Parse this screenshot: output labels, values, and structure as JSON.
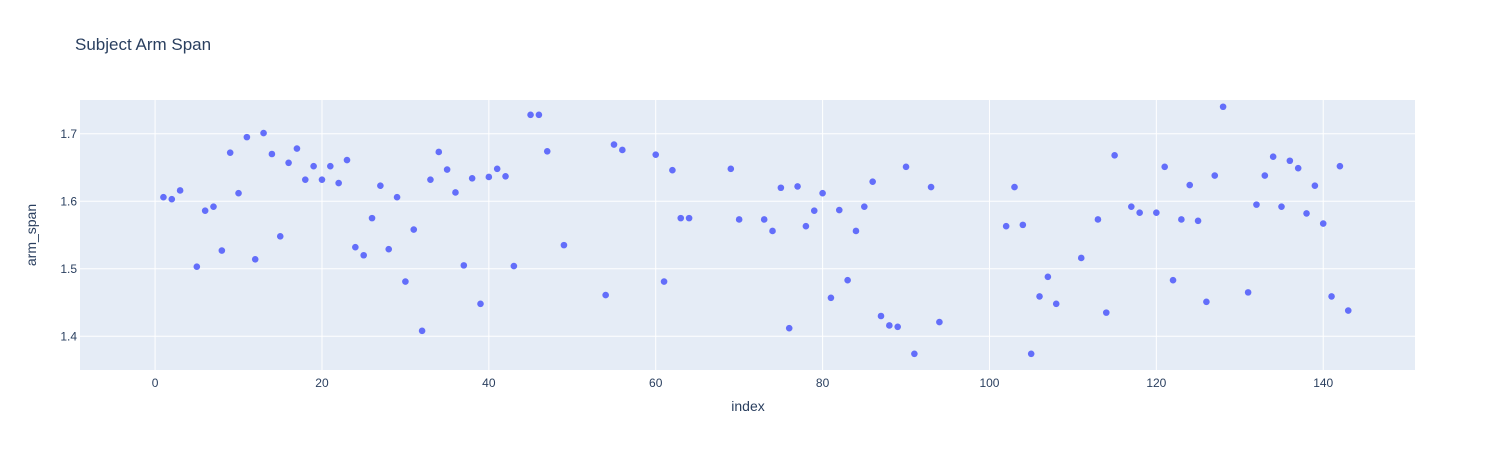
{
  "chart_data": {
    "type": "scatter",
    "title": "Subject Arm Span",
    "xlabel": "index",
    "ylabel": "arm_span",
    "xlim": [
      -9,
      151
    ],
    "ylim": [
      1.35,
      1.75
    ],
    "x_ticks": [
      0,
      20,
      40,
      60,
      80,
      100,
      120,
      140
    ],
    "y_ticks": [
      1.4,
      1.5,
      1.6,
      1.7
    ],
    "grid": true,
    "colors": {
      "marker": "#636efa",
      "plot_bg": "#e5ecf6",
      "grid": "#ffffff",
      "text": "#2a3f5f"
    },
    "points": [
      [
        1,
        1.606
      ],
      [
        2,
        1.603
      ],
      [
        3,
        1.616
      ],
      [
        5,
        1.503
      ],
      [
        6,
        1.586
      ],
      [
        7,
        1.592
      ],
      [
        8,
        1.527
      ],
      [
        9,
        1.672
      ],
      [
        10,
        1.612
      ],
      [
        11,
        1.695
      ],
      [
        12,
        1.514
      ],
      [
        13,
        1.701
      ],
      [
        14,
        1.67
      ],
      [
        15,
        1.548
      ],
      [
        16,
        1.657
      ],
      [
        17,
        1.678
      ],
      [
        18,
        1.632
      ],
      [
        19,
        1.652
      ],
      [
        20,
        1.632
      ],
      [
        21,
        1.652
      ],
      [
        22,
        1.627
      ],
      [
        23,
        1.661
      ],
      [
        24,
        1.532
      ],
      [
        25,
        1.52
      ],
      [
        26,
        1.575
      ],
      [
        27,
        1.623
      ],
      [
        28,
        1.529
      ],
      [
        29,
        1.606
      ],
      [
        30,
        1.481
      ],
      [
        31,
        1.558
      ],
      [
        32,
        1.408
      ],
      [
        33,
        1.632
      ],
      [
        34,
        1.673
      ],
      [
        35,
        1.647
      ],
      [
        36,
        1.613
      ],
      [
        37,
        1.505
      ],
      [
        38,
        1.634
      ],
      [
        39,
        1.448
      ],
      [
        40,
        1.636
      ],
      [
        41,
        1.648
      ],
      [
        42,
        1.637
      ],
      [
        43,
        1.504
      ],
      [
        45,
        1.728
      ],
      [
        46,
        1.728
      ],
      [
        47,
        1.674
      ],
      [
        49,
        1.535
      ],
      [
        54,
        1.461
      ],
      [
        55,
        1.684
      ],
      [
        56,
        1.676
      ],
      [
        60,
        1.669
      ],
      [
        61,
        1.481
      ],
      [
        62,
        1.646
      ],
      [
        63,
        1.575
      ],
      [
        64,
        1.575
      ],
      [
        69,
        1.648
      ],
      [
        70,
        1.573
      ],
      [
        73,
        1.573
      ],
      [
        74,
        1.556
      ],
      [
        75,
        1.62
      ],
      [
        76,
        1.412
      ],
      [
        77,
        1.622
      ],
      [
        78,
        1.563
      ],
      [
        79,
        1.586
      ],
      [
        80,
        1.612
      ],
      [
        81,
        1.457
      ],
      [
        82,
        1.587
      ],
      [
        83,
        1.483
      ],
      [
        84,
        1.556
      ],
      [
        85,
        1.592
      ],
      [
        86,
        1.629
      ],
      [
        87,
        1.43
      ],
      [
        88,
        1.416
      ],
      [
        89,
        1.414
      ],
      [
        90,
        1.651
      ],
      [
        91,
        1.374
      ],
      [
        93,
        1.621
      ],
      [
        94,
        1.421
      ],
      [
        102,
        1.563
      ],
      [
        103,
        1.621
      ],
      [
        104,
        1.565
      ],
      [
        105,
        1.374
      ],
      [
        106,
        1.459
      ],
      [
        107,
        1.488
      ],
      [
        108,
        1.448
      ],
      [
        111,
        1.516
      ],
      [
        113,
        1.573
      ],
      [
        114,
        1.435
      ],
      [
        115,
        1.668
      ],
      [
        117,
        1.592
      ],
      [
        118,
        1.583
      ],
      [
        120,
        1.583
      ],
      [
        121,
        1.651
      ],
      [
        122,
        1.483
      ],
      [
        123,
        1.573
      ],
      [
        124,
        1.624
      ],
      [
        125,
        1.571
      ],
      [
        126,
        1.451
      ],
      [
        127,
        1.638
      ],
      [
        128,
        1.74
      ],
      [
        131,
        1.465
      ],
      [
        132,
        1.595
      ],
      [
        133,
        1.638
      ],
      [
        134,
        1.666
      ],
      [
        135,
        1.592
      ],
      [
        136,
        1.66
      ],
      [
        137,
        1.649
      ],
      [
        138,
        1.582
      ],
      [
        139,
        1.623
      ],
      [
        140,
        1.567
      ],
      [
        141,
        1.459
      ],
      [
        142,
        1.652
      ],
      [
        143,
        1.438
      ]
    ]
  }
}
